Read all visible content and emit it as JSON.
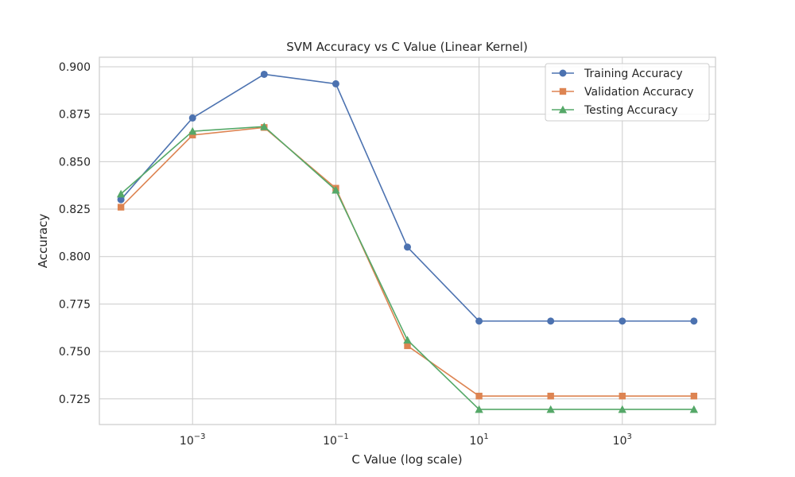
{
  "chart_data": {
    "type": "line",
    "title": "SVM Accuracy vs C Value (Linear Kernel)",
    "xlabel": "C Value (log scale)",
    "ylabel": "Accuracy",
    "xscale": "log",
    "x": [
      0.0001,
      0.001,
      0.01,
      0.1,
      1,
      10,
      100,
      1000,
      10000
    ],
    "xlim": [
      5e-05,
      20000
    ],
    "ylim": [
      0.7115,
      0.905
    ],
    "x_ticks": [
      {
        "value": 0.001,
        "base": "10",
        "exp": "−3"
      },
      {
        "value": 0.1,
        "base": "10",
        "exp": "−1"
      },
      {
        "value": 10,
        "base": "10",
        "exp": "1"
      },
      {
        "value": 1000,
        "base": "10",
        "exp": "3"
      }
    ],
    "y_ticks": [
      {
        "value": 0.725,
        "label": "0.725"
      },
      {
        "value": 0.75,
        "label": "0.750"
      },
      {
        "value": 0.775,
        "label": "0.775"
      },
      {
        "value": 0.8,
        "label": "0.800"
      },
      {
        "value": 0.825,
        "label": "0.825"
      },
      {
        "value": 0.85,
        "label": "0.850"
      },
      {
        "value": 0.875,
        "label": "0.875"
      },
      {
        "value": 0.9,
        "label": "0.900"
      }
    ],
    "grid": true,
    "legend_position": "top-right",
    "series": [
      {
        "name": "Training Accuracy",
        "color": "#4c72b0",
        "marker": "circle",
        "values": [
          0.83,
          0.873,
          0.896,
          0.891,
          0.805,
          0.766,
          0.766,
          0.766,
          0.766
        ]
      },
      {
        "name": "Validation Accuracy",
        "color": "#dd8452",
        "marker": "square",
        "values": [
          0.826,
          0.864,
          0.868,
          0.836,
          0.753,
          0.7265,
          0.7265,
          0.7265,
          0.7265
        ]
      },
      {
        "name": "Testing Accuracy",
        "color": "#55a868",
        "marker": "triangle",
        "values": [
          0.833,
          0.866,
          0.8685,
          0.835,
          0.756,
          0.7195,
          0.7195,
          0.7195,
          0.7195
        ]
      }
    ]
  }
}
